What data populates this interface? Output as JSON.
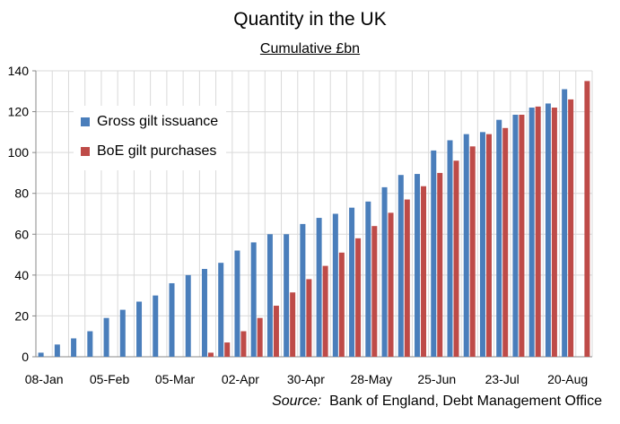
{
  "chart_data": {
    "type": "bar",
    "title": "Quantity in the UK",
    "subtitle": "Cumulative £bn",
    "ylim": [
      0,
      140
    ],
    "yticks": [
      0,
      20,
      40,
      60,
      80,
      100,
      120,
      140
    ],
    "grid": true,
    "legend_position": "top-left",
    "categories": [
      "08-Jan",
      "15-Jan",
      "22-Jan",
      "29-Jan",
      "05-Feb",
      "12-Feb",
      "19-Feb",
      "26-Feb",
      "05-Mar",
      "12-Mar",
      "19-Mar",
      "26-Mar",
      "02-Apr",
      "09-Apr",
      "16-Apr",
      "23-Apr",
      "30-Apr",
      "07-May",
      "14-May",
      "21-May",
      "28-May",
      "04-Jun",
      "11-Jun",
      "18-Jun",
      "25-Jun",
      "02-Jul",
      "09-Jul",
      "16-Jul",
      "23-Jul",
      "30-Jul",
      "06-Aug",
      "13-Aug",
      "20-Aug",
      "27-Aug"
    ],
    "x_tick_labels": [
      "08-Jan",
      "05-Feb",
      "05-Mar",
      "02-Apr",
      "30-Apr",
      "28-May",
      "25-Jun",
      "23-Jul",
      "20-Aug"
    ],
    "series": [
      {
        "name": "Gross gilt issuance",
        "color": "#4a7ebb",
        "values": [
          2,
          6,
          9,
          12.5,
          19,
          23,
          27,
          30,
          36,
          40,
          43,
          46,
          52,
          56,
          60,
          60,
          65,
          68,
          70,
          73,
          76,
          83,
          89,
          89.5,
          101,
          106,
          109,
          110,
          116,
          118.5,
          122,
          124,
          131,
          null
        ]
      },
      {
        "name": "BoE gilt purchases",
        "color": "#be4b48",
        "values": [
          0,
          0,
          0,
          0,
          0,
          0,
          0,
          0,
          0,
          0,
          2,
          7,
          12.5,
          19,
          25,
          31.5,
          38,
          44.5,
          51,
          58,
          64,
          70.5,
          77,
          83.5,
          90,
          96,
          103,
          109,
          112,
          118.5,
          122.5,
          122,
          126,
          135
        ]
      }
    ]
  },
  "source": {
    "label": "Source:",
    "text": "Bank of England, Debt Management Office"
  }
}
